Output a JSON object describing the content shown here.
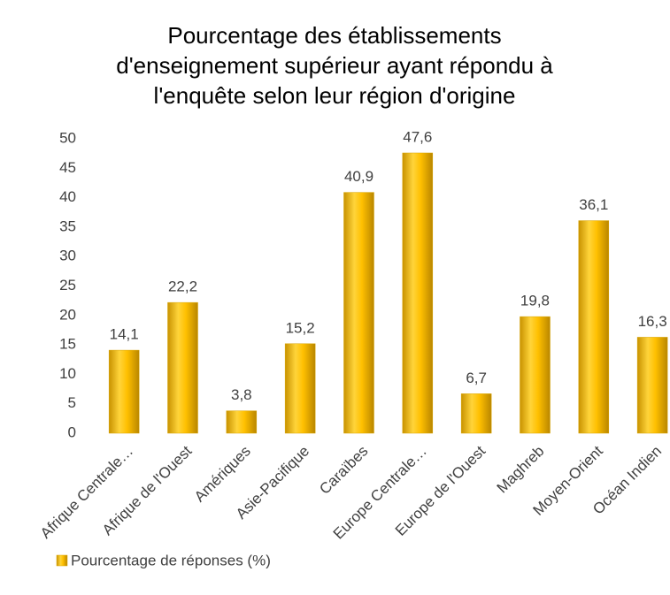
{
  "chart_data": {
    "type": "bar",
    "title": [
      "Pourcentage des établissements",
      "d'enseignement supérieur ayant répondu à",
      "l'enquête selon leur région d'origine"
    ],
    "categories": [
      "Afrique Centrale…",
      "Afrique de l'Ouest",
      "Amériques",
      "Asie-Pacifique",
      "Caraïbes",
      "Europe Centrale…",
      "Europe de l'Ouest",
      "Maghreb",
      "Moyen-Orient",
      "Océan Indien"
    ],
    "series": [
      {
        "name": "Pourcentage de réponses (%)",
        "color": "#ffc000",
        "values": [
          14.1,
          22.2,
          3.8,
          15.2,
          40.9,
          47.6,
          6.7,
          19.8,
          36.1,
          16.3
        ],
        "value_labels": [
          "14,1",
          "22,2",
          "3,8",
          "15,2",
          "40,9",
          "47,6",
          "6,7",
          "19,8",
          "36,1",
          "16,3"
        ]
      }
    ],
    "ylim": [
      0,
      50
    ],
    "yticks": [
      0,
      5,
      10,
      15,
      20,
      25,
      30,
      35,
      40,
      45,
      50
    ],
    "grid": false,
    "legend": "bottom-left"
  }
}
